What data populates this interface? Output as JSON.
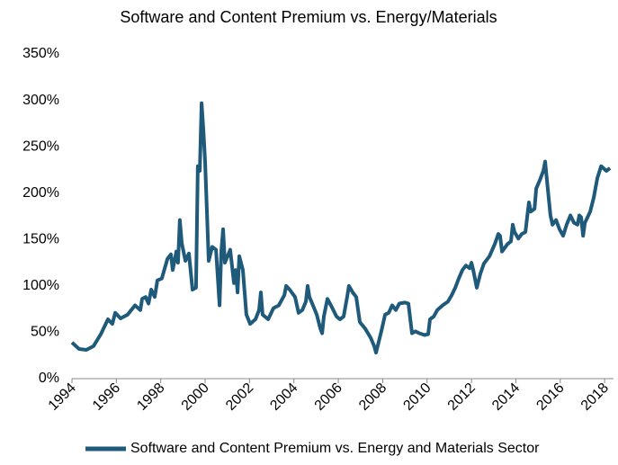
{
  "chart_data": {
    "type": "line",
    "title": "Software and Content Premium vs. Energy/Materials",
    "xlim": [
      1994,
      2018.4
    ],
    "xticks": [
      1994,
      1996,
      1998,
      2000,
      2002,
      2004,
      2006,
      2008,
      2010,
      2012,
      2014,
      2016,
      2018
    ],
    "ylim": [
      0,
      350
    ],
    "yticks": [
      {
        "value": 0,
        "label": "0%"
      },
      {
        "value": 50,
        "label": "50%"
      },
      {
        "value": 100,
        "label": "100%"
      },
      {
        "value": 150,
        "label": "150%"
      },
      {
        "value": 200,
        "label": "200%"
      },
      {
        "value": 250,
        "label": "250%"
      },
      {
        "value": 300,
        "label": "300%"
      },
      {
        "value": 350,
        "label": "350%"
      }
    ],
    "grid": false,
    "legend": "bottom",
    "x": [
      1994.0,
      1994.32,
      1994.65,
      1994.97,
      1995.3,
      1995.62,
      1995.82,
      1995.95,
      1996.19,
      1996.51,
      1996.84,
      1997.08,
      1997.16,
      1997.32,
      1997.45,
      1997.57,
      1997.73,
      1997.85,
      1998.05,
      1998.3,
      1998.46,
      1998.54,
      1998.7,
      1998.78,
      1998.86,
      1998.95,
      1999.11,
      1999.27,
      1999.43,
      1999.59,
      1999.67,
      1999.76,
      1999.84,
      1999.92,
      2000.0,
      2000.16,
      2000.32,
      2000.49,
      2000.65,
      2000.73,
      2000.81,
      2000.89,
      2001.13,
      2001.3,
      2001.38,
      2001.46,
      2001.54,
      2001.7,
      2001.86,
      2002.03,
      2002.27,
      2002.43,
      2002.51,
      2002.59,
      2002.84,
      2003.08,
      2003.32,
      2003.57,
      2003.65,
      2003.81,
      2004.05,
      2004.21,
      2004.38,
      2004.54,
      2004.62,
      2004.7,
      2004.86,
      2005.03,
      2005.19,
      2005.27,
      2005.35,
      2005.51,
      2005.67,
      2005.92,
      2006.08,
      2006.24,
      2006.4,
      2006.48,
      2006.65,
      2006.81,
      2006.97,
      2007.21,
      2007.46,
      2007.62,
      2007.7,
      2007.94,
      2008.11,
      2008.27,
      2008.43,
      2008.59,
      2008.75,
      2009.0,
      2009.16,
      2009.32,
      2009.48,
      2009.65,
      2009.89,
      2010.05,
      2010.13,
      2010.3,
      2010.46,
      2010.7,
      2010.94,
      2011.11,
      2011.27,
      2011.43,
      2011.59,
      2011.75,
      2011.92,
      2012.0,
      2012.08,
      2012.24,
      2012.4,
      2012.56,
      2012.81,
      2013.05,
      2013.21,
      2013.29,
      2013.38,
      2013.62,
      2013.78,
      2013.86,
      2013.94,
      2014.11,
      2014.27,
      2014.43,
      2014.51,
      2014.59,
      2014.67,
      2014.84,
      2014.92,
      2015.08,
      2015.24,
      2015.32,
      2015.4,
      2015.56,
      2015.65,
      2015.81,
      2015.97,
      2016.13,
      2016.29,
      2016.46,
      2016.62,
      2016.78,
      2016.86,
      2016.94,
      2017.03,
      2017.11,
      2017.35,
      2017.51,
      2017.67,
      2017.84,
      2018.08,
      2018.24
    ],
    "series": [
      {
        "name": "Software and Content Premium vs. Energy and Materials Sector",
        "color": "#1f5a7a",
        "values": [
          39,
          32,
          31,
          35,
          48,
          64,
          59,
          71,
          65,
          69,
          79,
          74,
          86,
          88,
          81,
          96,
          88,
          106,
          108,
          129,
          134,
          117,
          137,
          125,
          171,
          146,
          127,
          135,
          96,
          98,
          229,
          224,
          297,
          268,
          234,
          127,
          142,
          139,
          79,
          137,
          161,
          125,
          139,
          103,
          117,
          93,
          132,
          117,
          69,
          59,
          64,
          74,
          93,
          69,
          64,
          76,
          79,
          90,
          100,
          96,
          88,
          71,
          74,
          83,
          100,
          88,
          79,
          69,
          54,
          49,
          67,
          86,
          79,
          67,
          64,
          67,
          88,
          100,
          93,
          88,
          61,
          54,
          44,
          35,
          28,
          51,
          69,
          71,
          79,
          74,
          81,
          82,
          81,
          49,
          51,
          49,
          47,
          48,
          64,
          67,
          74,
          79,
          83,
          90,
          98,
          108,
          117,
          122,
          119,
          125,
          117,
          98,
          113,
          124,
          132,
          145,
          156,
          154,
          137,
          145,
          148,
          166,
          158,
          151,
          156,
          158,
          174,
          190,
          180,
          183,
          205,
          214,
          224,
          234,
          214,
          176,
          166,
          171,
          161,
          154,
          166,
          176,
          168,
          166,
          176,
          174,
          154,
          168,
          180,
          195,
          216,
          229,
          224,
          227
        ]
      }
    ]
  }
}
